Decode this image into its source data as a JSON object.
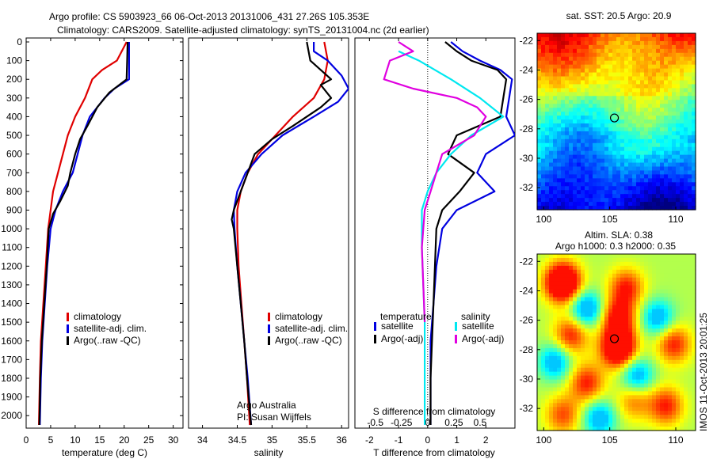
{
  "header": {
    "line1": "Argo profile: CS 5903923_66 06-Oct-2013 20131006_431 27.26S 105.353E",
    "line2": "Climatology: CARS2009. Satellite-adjusted climatology: synTS_20131004.nc (2d earlier)"
  },
  "depth_ticks": [
    "0",
    "100",
    "200",
    "300",
    "400",
    "500",
    "600",
    "700",
    "800",
    "900",
    "1000",
    "1100",
    "1200",
    "1300",
    "1400",
    "1500",
    "1600",
    "1700",
    "1800",
    "1900",
    "2000"
  ],
  "colors": {
    "climatology": "#e00000",
    "satellite": "#0000e0",
    "argo": "#000000",
    "sat_salinity": "#00e8f0",
    "argo_salinity": "#e000e0"
  },
  "chart_data": [
    {
      "type": "line",
      "panel": "temperature",
      "xlabel": "temperature (deg C)",
      "xlim": [
        0,
        32
      ],
      "ylim": [
        2050,
        0
      ],
      "x_ticks": [
        "0",
        "5",
        "10",
        "15",
        "20",
        "25",
        "30"
      ],
      "legend": [
        "climatology",
        "satellite-adj. clim.",
        "Argo(..raw -QC)"
      ],
      "series": [
        {
          "name": "climatology",
          "color": "#e00000",
          "points": [
            [
              20.5,
              0
            ],
            [
              19.5,
              50
            ],
            [
              18.5,
              100
            ],
            [
              15.5,
              150
            ],
            [
              13.5,
              200
            ],
            [
              12,
              300
            ],
            [
              10,
              400
            ],
            [
              8.5,
              500
            ],
            [
              7.5,
              600
            ],
            [
              6.5,
              700
            ],
            [
              5.5,
              800
            ],
            [
              5,
              900
            ],
            [
              4.5,
              1000
            ],
            [
              4,
              1200
            ],
            [
              3.5,
              1400
            ],
            [
              3,
              1600
            ],
            [
              2.8,
              1800
            ],
            [
              2.6,
              2050
            ]
          ]
        },
        {
          "name": "satellite-adj. clim.",
          "color": "#0000e0",
          "points": [
            [
              21,
              0
            ],
            [
              21,
              100
            ],
            [
              21,
              200
            ],
            [
              18,
              250
            ],
            [
              16,
              300
            ],
            [
              13,
              400
            ],
            [
              11.5,
              500
            ],
            [
              10.5,
              600
            ],
            [
              9.5,
              700
            ],
            [
              7.5,
              800
            ],
            [
              6,
              900
            ],
            [
              5,
              1000
            ],
            [
              4.3,
              1200
            ],
            [
              3.8,
              1400
            ],
            [
              3.3,
              1600
            ],
            [
              3,
              1800
            ],
            [
              2.8,
              2050
            ]
          ]
        },
        {
          "name": "Argo(..raw -QC)",
          "color": "#000000",
          "points": [
            [
              20.7,
              0
            ],
            [
              20.6,
              100
            ],
            [
              20.5,
              200
            ],
            [
              17,
              270
            ],
            [
              14.5,
              350
            ],
            [
              12.5,
              450
            ],
            [
              11,
              520
            ],
            [
              10,
              600
            ],
            [
              9,
              700
            ],
            [
              8.5,
              770
            ],
            [
              7,
              850
            ],
            [
              5.5,
              920
            ],
            [
              4.6,
              1000
            ],
            [
              4.2,
              1200
            ],
            [
              3.7,
              1400
            ],
            [
              3.2,
              1600
            ],
            [
              2.9,
              1800
            ],
            [
              2.7,
              2050
            ]
          ]
        }
      ]
    },
    {
      "type": "line",
      "panel": "salinity",
      "xlabel": "salinity",
      "xlim": [
        33.8,
        36.1
      ],
      "ylim": [
        2050,
        0
      ],
      "x_ticks": [
        "34",
        "34.5",
        "35",
        "35.5",
        "36"
      ],
      "legend": [
        "climatology",
        "satellite-adj. clim.",
        "Argo(..raw -QC)"
      ],
      "annotation": [
        "Argo Australia",
        "PI: Susan Wijffels"
      ],
      "series": [
        {
          "name": "climatology",
          "color": "#e00000",
          "points": [
            [
              35.75,
              0
            ],
            [
              35.8,
              100
            ],
            [
              35.75,
              200
            ],
            [
              35.6,
              300
            ],
            [
              35.3,
              400
            ],
            [
              35.05,
              500
            ],
            [
              34.8,
              600
            ],
            [
              34.65,
              700
            ],
            [
              34.55,
              800
            ],
            [
              34.5,
              900
            ],
            [
              34.5,
              1000
            ],
            [
              34.52,
              1200
            ],
            [
              34.56,
              1400
            ],
            [
              34.6,
              1600
            ],
            [
              34.64,
              1800
            ],
            [
              34.68,
              2050
            ]
          ]
        },
        {
          "name": "satellite-adj. clim.",
          "color": "#0000e0",
          "points": [
            [
              35.6,
              0
            ],
            [
              35.6,
              50
            ],
            [
              35.8,
              100
            ],
            [
              36.0,
              180
            ],
            [
              36.1,
              250
            ],
            [
              35.95,
              320
            ],
            [
              35.6,
              400
            ],
            [
              35.15,
              500
            ],
            [
              34.85,
              600
            ],
            [
              34.62,
              700
            ],
            [
              34.5,
              800
            ],
            [
              34.45,
              900
            ],
            [
              34.46,
              1000
            ],
            [
              34.5,
              1200
            ],
            [
              34.55,
              1400
            ],
            [
              34.6,
              1600
            ],
            [
              34.65,
              1800
            ],
            [
              34.7,
              2050
            ]
          ]
        },
        {
          "name": "Argo(..raw -QC)",
          "color": "#000000",
          "points": [
            [
              35.5,
              0
            ],
            [
              35.55,
              100
            ],
            [
              35.85,
              200
            ],
            [
              35.7,
              230
            ],
            [
              35.85,
              300
            ],
            [
              35.7,
              350
            ],
            [
              35.3,
              450
            ],
            [
              35.0,
              520
            ],
            [
              34.75,
              600
            ],
            [
              34.65,
              700
            ],
            [
              34.55,
              800
            ],
            [
              34.45,
              900
            ],
            [
              34.42,
              950
            ],
            [
              34.45,
              1000
            ],
            [
              34.5,
              1200
            ],
            [
              34.55,
              1400
            ],
            [
              34.6,
              1600
            ],
            [
              34.64,
              1800
            ],
            [
              34.7,
              2050
            ]
          ]
        }
      ]
    },
    {
      "type": "line",
      "panel": "difference",
      "xlabel": "T difference from climatology",
      "xlabel_top": "S difference from climatology",
      "xlim": [
        -2.5,
        3
      ],
      "ylim": [
        2050,
        0
      ],
      "x_ticks": [
        "-2",
        "-1",
        "0",
        "1",
        "2"
      ],
      "x_ticks_top": [
        "-0.5",
        "-0.25",
        "0",
        "0.25",
        "0.5"
      ],
      "legend_headers": [
        "temperature",
        "salinity"
      ],
      "legend": [
        "satellite",
        "Argo(-adj)",
        "satellite",
        "Argo(-adj)"
      ],
      "series": [
        {
          "name": "satellite",
          "color": "#0000e0",
          "points": [
            [
              0.8,
              0
            ],
            [
              1.2,
              50
            ],
            [
              1.8,
              100
            ],
            [
              2.5,
              150
            ],
            [
              2.9,
              200
            ],
            [
              2.8,
              300
            ],
            [
              2.7,
              400
            ],
            [
              3.0,
              500
            ],
            [
              2.0,
              600
            ],
            [
              1.7,
              700
            ],
            [
              2.3,
              800
            ],
            [
              1.0,
              900
            ],
            [
              0.5,
              1000
            ],
            [
              0.3,
              1200
            ],
            [
              0.2,
              1400
            ],
            [
              0.1,
              1600
            ],
            [
              0.1,
              1800
            ],
            [
              0.1,
              2050
            ]
          ]
        },
        {
          "name": "Argo(-adj)",
          "color": "#000000",
          "points": [
            [
              0.6,
              0
            ],
            [
              1.0,
              50
            ],
            [
              1.5,
              100
            ],
            [
              2.4,
              150
            ],
            [
              2.7,
              200
            ],
            [
              2.6,
              300
            ],
            [
              2.5,
              400
            ],
            [
              1.0,
              500
            ],
            [
              0.7,
              600
            ],
            [
              1.6,
              700
            ],
            [
              1.1,
              800
            ],
            [
              0.5,
              900
            ],
            [
              0.3,
              1000
            ],
            [
              0.25,
              1200
            ],
            [
              0.2,
              1400
            ],
            [
              0.15,
              1600
            ],
            [
              0.1,
              1800
            ],
            [
              0.1,
              2050
            ]
          ]
        },
        {
          "name": "satellite",
          "color": "#00e8f0",
          "points": [
            [
              -1.0,
              50
            ],
            [
              -0.3,
              100
            ],
            [
              0.8,
              200
            ],
            [
              1.8,
              300
            ],
            [
              2.6,
              400
            ],
            [
              1.5,
              500
            ],
            [
              0.8,
              600
            ],
            [
              0.3,
              700
            ],
            [
              0.0,
              800
            ],
            [
              -0.2,
              900
            ],
            [
              -0.2,
              1100
            ],
            [
              -0.15,
              1300
            ],
            [
              -0.1,
              1500
            ],
            [
              -0.1,
              1700
            ],
            [
              -0.1,
              1900
            ],
            [
              -0.1,
              2050
            ]
          ]
        },
        {
          "name": "Argo(-adj)",
          "color": "#e000e0",
          "points": [
            [
              -1.0,
              0
            ],
            [
              -0.5,
              50
            ],
            [
              -1.3,
              100
            ],
            [
              -1.5,
              200
            ],
            [
              -0.5,
              250
            ],
            [
              1.0,
              300
            ],
            [
              1.7,
              350
            ],
            [
              2.0,
              400
            ],
            [
              1.6,
              500
            ],
            [
              0.5,
              600
            ],
            [
              0.3,
              700
            ],
            [
              0.1,
              800
            ],
            [
              -0.1,
              900
            ],
            [
              -0.2,
              1100
            ],
            [
              -0.15,
              1300
            ],
            [
              -0.1,
              1500
            ]
          ]
        }
      ]
    },
    {
      "type": "heatmap",
      "panel": "sst_map",
      "title": "sat. SST: 20.5 Argo: 20.9",
      "x_ticks": [
        "100",
        "105",
        "110"
      ],
      "y_ticks": [
        "-22",
        "-24",
        "-26",
        "-28",
        "-30",
        "-32"
      ],
      "xlim": [
        99.5,
        111.5
      ],
      "ylim": [
        -33.5,
        -21.5
      ],
      "float_position": [
        105.353,
        -27.26
      ]
    },
    {
      "type": "heatmap",
      "panel": "sla_map",
      "title": "Altim. SLA: 0.38",
      "subtitle": "Argo h1000: 0.3 h2000: 0.35",
      "x_ticks": [
        "100",
        "105",
        "110"
      ],
      "y_ticks": [
        "-22",
        "-24",
        "-26",
        "-28",
        "-30",
        "-32"
      ],
      "xlim": [
        99.5,
        111.5
      ],
      "ylim": [
        -33.5,
        -21.5
      ],
      "float_position": [
        105.353,
        -27.26
      ]
    }
  ],
  "footer": {
    "stamp": "IMOS 11-Oct-2013 20:01:25"
  }
}
